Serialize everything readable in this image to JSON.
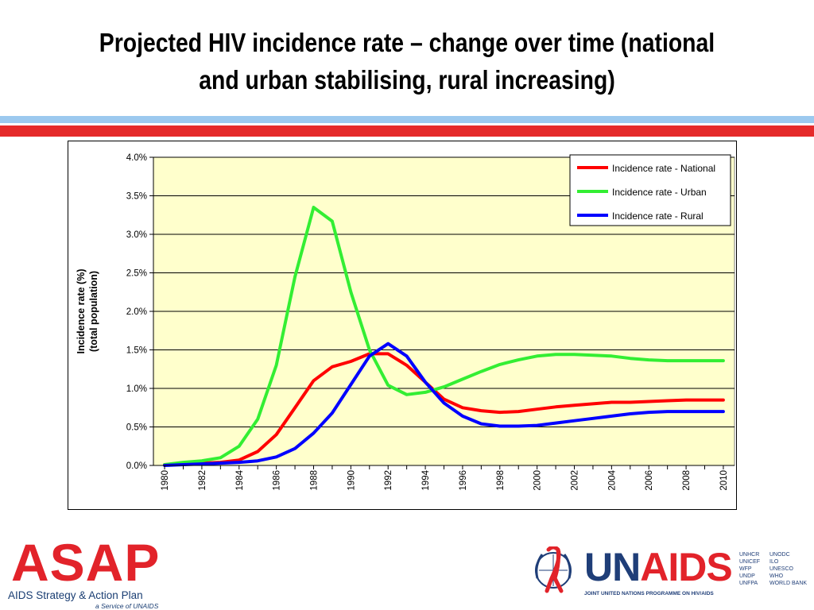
{
  "slide": {
    "title": "Projected HIV incidence rate – change over time (national and urban stabilising, rural increasing)"
  },
  "chart_data": {
    "type": "line",
    "title": "",
    "xlabel": "",
    "ylabel_lines": [
      "Incidence rate (%)",
      "(total population)"
    ],
    "ylim": [
      0,
      4
    ],
    "yticks": [
      "0.0%",
      "0.5%",
      "1.0%",
      "1.5%",
      "2.0%",
      "2.5%",
      "3.0%",
      "3.5%",
      "4.0%"
    ],
    "x": [
      1980,
      1981,
      1982,
      1983,
      1984,
      1985,
      1986,
      1987,
      1988,
      1989,
      1990,
      1991,
      1992,
      1993,
      1994,
      1995,
      1996,
      1997,
      1998,
      1999,
      2000,
      2001,
      2002,
      2003,
      2004,
      2005,
      2006,
      2007,
      2008,
      2009,
      2010
    ],
    "xticklabels": [
      "1980",
      "1982",
      "1984",
      "1986",
      "1988",
      "1990",
      "1992",
      "1994",
      "1996",
      "1998",
      "2000",
      "2002",
      "2004",
      "2006",
      "2008",
      "2010"
    ],
    "grid": "horizontal",
    "legend_position": "top-right",
    "plot_background": "#ffffcc",
    "series": [
      {
        "name": "Incidence rate - National",
        "color": "#ff0000",
        "values": [
          0.01,
          0.02,
          0.03,
          0.04,
          0.07,
          0.18,
          0.4,
          0.75,
          1.1,
          1.28,
          1.35,
          1.45,
          1.45,
          1.3,
          1.08,
          0.86,
          0.75,
          0.71,
          0.69,
          0.7,
          0.73,
          0.76,
          0.78,
          0.8,
          0.82,
          0.82,
          0.83,
          0.84,
          0.85,
          0.85,
          0.85
        ]
      },
      {
        "name": "Incidence rate - Urban",
        "color": "#33ee33",
        "values": [
          0.01,
          0.04,
          0.06,
          0.1,
          0.25,
          0.6,
          1.3,
          2.45,
          3.35,
          3.17,
          2.25,
          1.5,
          1.04,
          0.92,
          0.95,
          1.02,
          1.12,
          1.22,
          1.31,
          1.37,
          1.42,
          1.44,
          1.44,
          1.43,
          1.42,
          1.39,
          1.37,
          1.36,
          1.36,
          1.36,
          1.36
        ]
      },
      {
        "name": "Incidence rate - Rural",
        "color": "#0000ff",
        "values": [
          0.0,
          0.01,
          0.02,
          0.03,
          0.04,
          0.06,
          0.11,
          0.22,
          0.42,
          0.68,
          1.05,
          1.42,
          1.58,
          1.42,
          1.08,
          0.81,
          0.64,
          0.54,
          0.51,
          0.51,
          0.52,
          0.55,
          0.58,
          0.61,
          0.64,
          0.67,
          0.69,
          0.7,
          0.7,
          0.7,
          0.7
        ]
      }
    ]
  },
  "logos": {
    "asap": {
      "word": "ASAP",
      "line": "AIDS Strategy & Action Plan",
      "service": "a Service of UNAIDS"
    },
    "unaids": {
      "word_part1": "UN",
      "word_part2": "AIDS",
      "tagline": "JOINT UNITED NATIONS PROGRAMME ON HIV/AIDS",
      "cosponsors_left": [
        "UNHCR",
        "UNICEF",
        "WFP",
        "UNDP",
        "UNFPA"
      ],
      "cosponsors_right": [
        "UNODC",
        "ILO",
        "UNESCO",
        "WHO",
        "WORLD BANK"
      ]
    }
  },
  "colors": {
    "accent_red": "#e52a2a",
    "accent_blue": "#9cc9ef",
    "logo_navy": "#1f3e78"
  }
}
